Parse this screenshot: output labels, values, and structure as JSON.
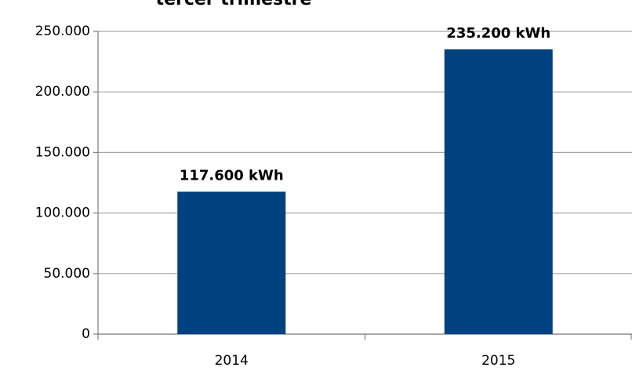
{
  "chart_data": {
    "type": "bar",
    "title": "tercer trimestre",
    "categories": [
      "2014",
      "2015"
    ],
    "values": [
      117600,
      235200
    ],
    "value_labels": [
      "117.600 kWh",
      "235.200 kWh"
    ],
    "color": "#00417f",
    "ylim": [
      0,
      250000
    ],
    "yticks": [
      0,
      {
        "value": 50000,
        "label": "50.000"
      },
      {
        "value": 100000,
        "label": "100.000"
      },
      {
        "value": 150000,
        "label": "150.000"
      },
      {
        "value": 200000,
        "label": "200.000"
      },
      {
        "value": 250000,
        "label": "250.000"
      }
    ],
    "grid": true
  }
}
